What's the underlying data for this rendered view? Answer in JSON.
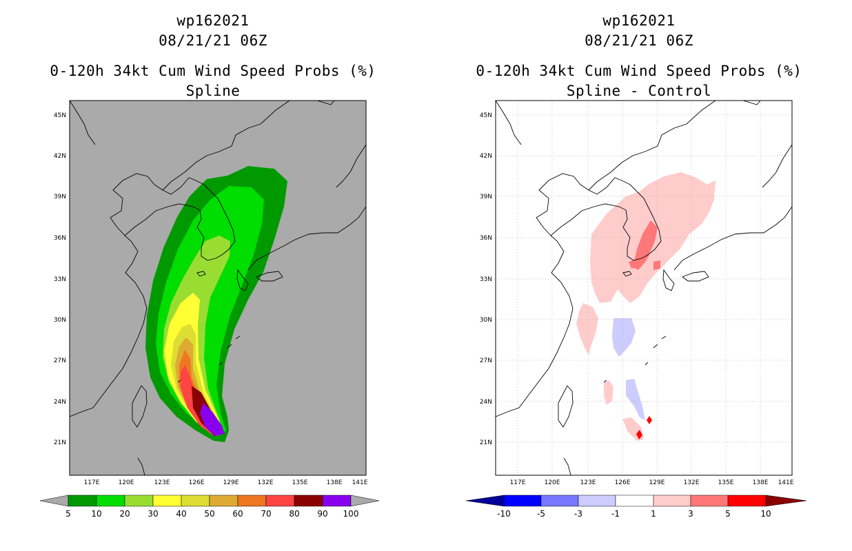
{
  "panels": [
    {
      "storm_id": "wp162021",
      "datetime": "08/21/21 06Z",
      "product": "0-120h 34kt Cum Wind Speed Probs (%)",
      "subtitle": "Spline",
      "lat_labels": [
        "45N",
        "42N",
        "39N",
        "36N",
        "33N",
        "30N",
        "27N",
        "24N",
        "21N"
      ],
      "lon_labels": [
        "117E",
        "120E",
        "123E",
        "126E",
        "129E",
        "132E",
        "135E",
        "138E",
        "141E"
      ],
      "colorbar": {
        "labels": [
          "5",
          "10",
          "20",
          "30",
          "40",
          "50",
          "60",
          "70",
          "80",
          "90",
          "100"
        ],
        "colors": [
          "#009900",
          "#00dd00",
          "#99dd33",
          "#ffff33",
          "#dddd33",
          "#ddaa33",
          "#ee7722",
          "#ff4444",
          "#8b0000",
          "#8800ee"
        ],
        "under_color": "#aaaaaa",
        "over_color": "#aaaaaa"
      }
    },
    {
      "storm_id": "wp162021",
      "datetime": "08/21/21 06Z",
      "product": "0-120h 34kt Cum Wind Speed Probs (%)",
      "subtitle": "Spline - Control",
      "lat_labels": [
        "45N",
        "42N",
        "39N",
        "36N",
        "33N",
        "30N",
        "27N",
        "24N",
        "21N"
      ],
      "lon_labels": [
        "117E",
        "120E",
        "123E",
        "126E",
        "129E",
        "132E",
        "135E",
        "138E",
        "141E"
      ],
      "colorbar": {
        "labels": [
          "-10",
          "-5",
          "-3",
          "-1",
          "1",
          "3",
          "5",
          "10"
        ],
        "colors": [
          "#0000ff",
          "#7777ff",
          "#ccccff",
          "#ffffff",
          "#ffcccc",
          "#ff7777",
          "#ff0000"
        ],
        "under_color": "#000099",
        "over_color": "#880000"
      }
    }
  ]
}
